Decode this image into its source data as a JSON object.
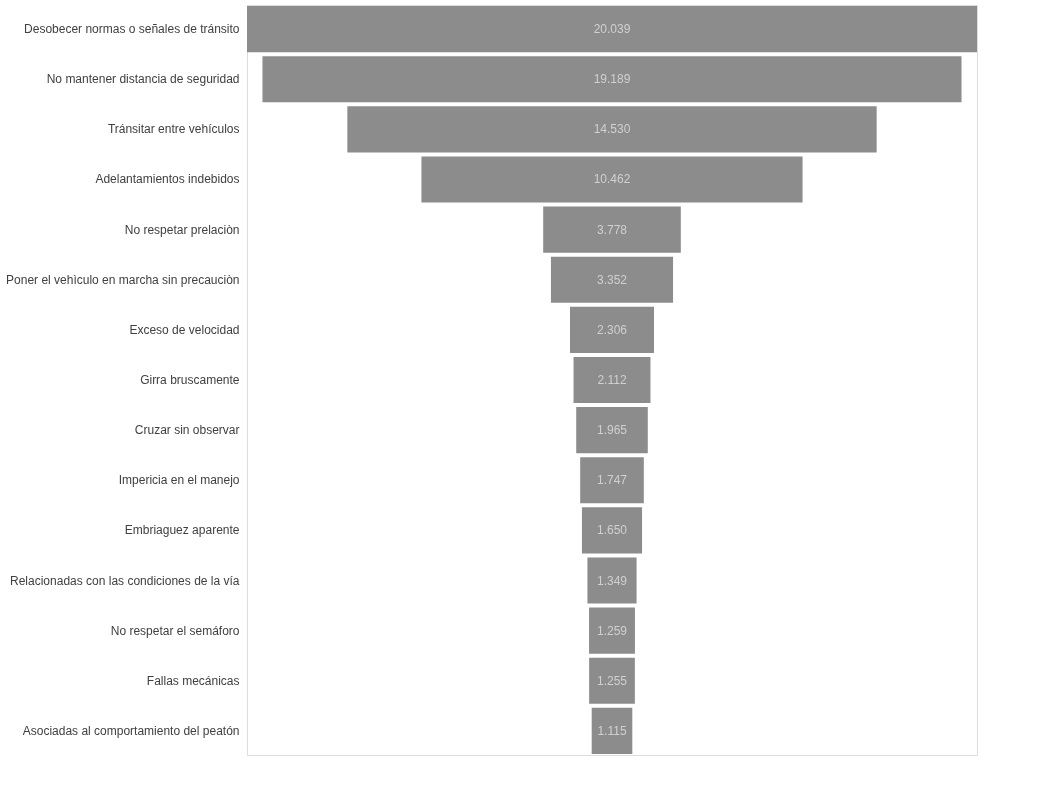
{
  "chart_data": {
    "type": "other",
    "categories": [
      "Desobecer normas o señales de tránsito",
      "No mantener distancia de seguridad",
      "Tránsitar entre vehículos",
      "Adelantamientos indebidos",
      "No respetar prelaciòn",
      "Poner el vehìculo en marcha sin precauciòn",
      "Exceso de velocidad",
      "Girra bruscamente",
      "Cruzar sin observar",
      "Impericia en el manejo",
      "Embriaguez aparente",
      "Relacionadas con las condiciones de la vía",
      "No respetar el semáforo",
      "Fallas mecánicas",
      "Asociadas al comportamiento del peatón"
    ],
    "values": [
      20039,
      19189,
      14530,
      10462,
      3778,
      3352,
      2306,
      2112,
      1965,
      1747,
      1650,
      1349,
      1259,
      1255,
      1115
    ],
    "value_labels": [
      "20.039",
      "19.189",
      "14.530",
      "10.462",
      "3.778",
      "3.352",
      "2.306",
      "2.112",
      "1.965",
      "1.747",
      "1.650",
      "1.349",
      "1.259",
      "1.255",
      "1.115"
    ],
    "color": "#8c8c8c"
  }
}
